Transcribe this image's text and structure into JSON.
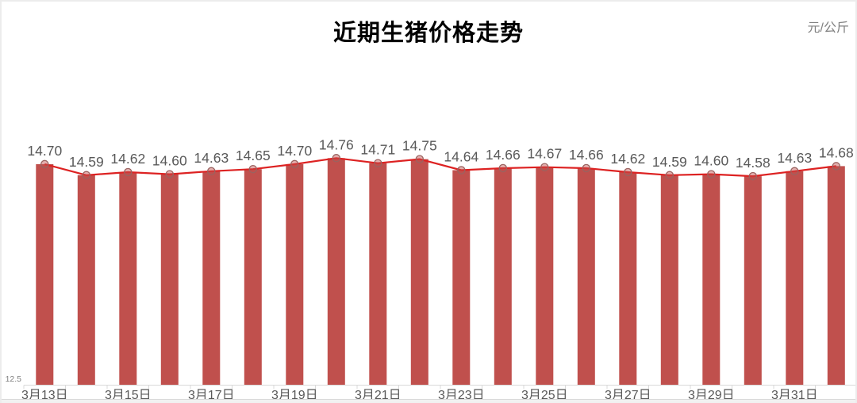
{
  "header": {
    "title": "近期生猪价格走势",
    "unit_label": "元/公斤"
  },
  "y_axis": {
    "min_label": "12.5"
  },
  "chart_data": {
    "type": "bar",
    "title": "近期生猪价格走势",
    "ylabel": "元/公斤",
    "values": [
      14.7,
      14.59,
      14.62,
      14.6,
      14.63,
      14.65,
      14.7,
      14.76,
      14.71,
      14.75,
      14.64,
      14.66,
      14.67,
      14.66,
      14.62,
      14.59,
      14.6,
      14.58,
      14.63,
      14.68
    ],
    "value_labels": [
      "14.70",
      "14.59",
      "14.62",
      "14.60",
      "14.63",
      "14.65",
      "14.70",
      "14.76",
      "14.71",
      "14.75",
      "14.64",
      "14.66",
      "14.67",
      "14.66",
      "14.62",
      "14.59",
      "14.60",
      "14.58",
      "14.63",
      "14.68"
    ],
    "x_tick_labels": [
      "3月13日",
      "3月15日",
      "3月17日",
      "3月19日",
      "3月21日",
      "3月23日",
      "3月25日",
      "3月27日",
      "3月29日",
      "3月31日"
    ],
    "x_labels_every_other_bar": true,
    "y_min": 12.5,
    "overlay_line": true,
    "grid": false,
    "legend": "none",
    "colors": {
      "bar": "#c0504d",
      "line": "#dd2222",
      "marker_stroke": "#9a6360",
      "marker_fill": "rgba(192,80,77,0.45)",
      "data_label": "#595959",
      "axis_label": "#595959",
      "y_min_label": "#808080",
      "axis_line": "#d9d9d9",
      "title": "#000000",
      "unit": "#808080"
    }
  }
}
